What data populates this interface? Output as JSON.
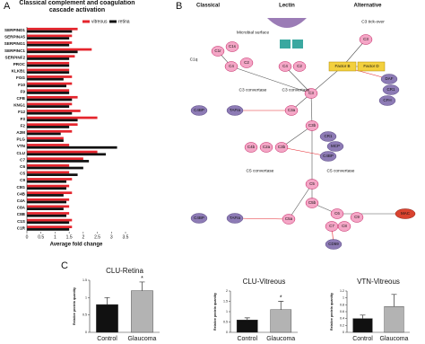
{
  "chart_data": [
    {
      "type": "barh",
      "panel": "A",
      "title": "Classical complement and coagulation cascade activation",
      "xlabel": "Average fold change",
      "categories": [
        "SERPIND1",
        "SERPINA5",
        "SERPING1",
        "SERPINC1",
        "SERPINF2",
        "PROC",
        "KLKB1",
        "FGG",
        "F10",
        "F9",
        "CFB",
        "KNG1",
        "F12",
        "F3",
        "F2",
        "A2M",
        "PLG",
        "VTN",
        "CLU",
        "C7",
        "C6",
        "C5",
        "C9",
        "C8G",
        "C4B",
        "C4A",
        "C8A",
        "C8B",
        "C1S",
        "C1R"
      ],
      "series": [
        {
          "name": "vitreous",
          "color": "#e5252d",
          "values": [
            1.8,
            1.6,
            1.6,
            2.3,
            1.7,
            1.5,
            1.5,
            1.6,
            1.6,
            1.5,
            1.8,
            1.6,
            1.9,
            2.5,
            1.8,
            1.6,
            1.3,
            1.5,
            2.5,
            2.0,
            1.5,
            1.5,
            1.6,
            1.5,
            1.6,
            1.5,
            1.5,
            1.5,
            1.6,
            1.6
          ]
        },
        {
          "name": "retina",
          "color": "#111111",
          "values": [
            1.6,
            1.5,
            1.5,
            1.8,
            1.5,
            1.5,
            1.5,
            1.3,
            1.4,
            1.5,
            1.6,
            1.5,
            1.6,
            1.8,
            1.5,
            1.2,
            1.3,
            3.2,
            2.8,
            2.2,
            2.0,
            1.8,
            1.4,
            1.4,
            1.3,
            1.4,
            1.3,
            1.4,
            1.5,
            1.5
          ]
        }
      ],
      "xlim": [
        0,
        3.5
      ],
      "xticks": [
        0,
        0.5,
        1,
        1.5,
        2,
        2.5,
        3,
        3.5
      ],
      "legend": "upper right"
    },
    {
      "type": "bar",
      "panel": "C",
      "title": "CLU-Retina",
      "ylabel": "Relative protein quantity",
      "categories": [
        "Control",
        "Glaucoma"
      ],
      "values": [
        0.8,
        1.2
      ],
      "errors": [
        0.2,
        0.25
      ],
      "colors": [
        "#111111",
        "#b3b3b3"
      ],
      "ylim": [
        0,
        1.5
      ],
      "yticks": [
        0,
        0.5,
        1,
        1.5
      ],
      "annotation": "*"
    },
    {
      "type": "bar",
      "title": "CLU-Vitreous",
      "ylabel": "Relative protein quantity",
      "categories": [
        "Control",
        "Glaucoma"
      ],
      "values": [
        0.6,
        1.1
      ],
      "errors": [
        0.1,
        0.4
      ],
      "colors": [
        "#111111",
        "#b3b3b3"
      ],
      "ylim": [
        0,
        2
      ],
      "yticks": [
        0,
        0.5,
        1,
        1.5,
        2
      ],
      "annotation": "*"
    },
    {
      "type": "bar",
      "title": "VTN-Vitreous",
      "ylabel": "Relative protein quantity",
      "categories": [
        "Control",
        "Glaucoma"
      ],
      "values": [
        0.4,
        0.75
      ],
      "errors": [
        0.1,
        0.35
      ],
      "colors": [
        "#111111",
        "#b3b3b3"
      ],
      "ylim": [
        0,
        1.2
      ],
      "yticks": [
        0,
        0.2,
        0.4,
        0.6,
        0.8,
        1,
        1.2
      ]
    }
  ],
  "diagram": {
    "panel": "B",
    "headers": [
      "Classical",
      "Lectin",
      "Alternative"
    ],
    "nodes": [
      {
        "label": "C1q"
      },
      {
        "label": "C1r"
      },
      {
        "label": "C1s"
      },
      {
        "label": "C4"
      },
      {
        "label": "C2"
      },
      {
        "label": "C4"
      },
      {
        "label": "C2"
      },
      {
        "label": "C3"
      },
      {
        "label": "Factor B"
      },
      {
        "label": "Factor D"
      },
      {
        "label": "C3"
      },
      {
        "label": "DAF"
      },
      {
        "label": "CR1"
      },
      {
        "label": "CFH"
      },
      {
        "label": "C4BP"
      },
      {
        "label": "TAFIa"
      },
      {
        "label": "C3a"
      },
      {
        "label": "C3b"
      },
      {
        "label": "C4b"
      },
      {
        "label": "C2a"
      },
      {
        "label": "C3b"
      },
      {
        "label": "CR1"
      },
      {
        "label": "MCP"
      },
      {
        "label": "C4BP"
      },
      {
        "label": "C5"
      },
      {
        "label": "C5b"
      },
      {
        "label": "C4BP"
      },
      {
        "label": "TAFIa"
      },
      {
        "label": "C5a"
      },
      {
        "label": "C6"
      },
      {
        "label": "C7"
      },
      {
        "label": "C8"
      },
      {
        "label": "C9"
      },
      {
        "label": "MAC"
      },
      {
        "label": "CD59"
      },
      {
        "label": "C3 convertase"
      },
      {
        "label": "C3 convertase"
      },
      {
        "label": "C5 convertase"
      },
      {
        "label": "C5 convertase"
      },
      {
        "label": "Microbial surface"
      },
      {
        "label": "C3 tick-over"
      }
    ]
  }
}
